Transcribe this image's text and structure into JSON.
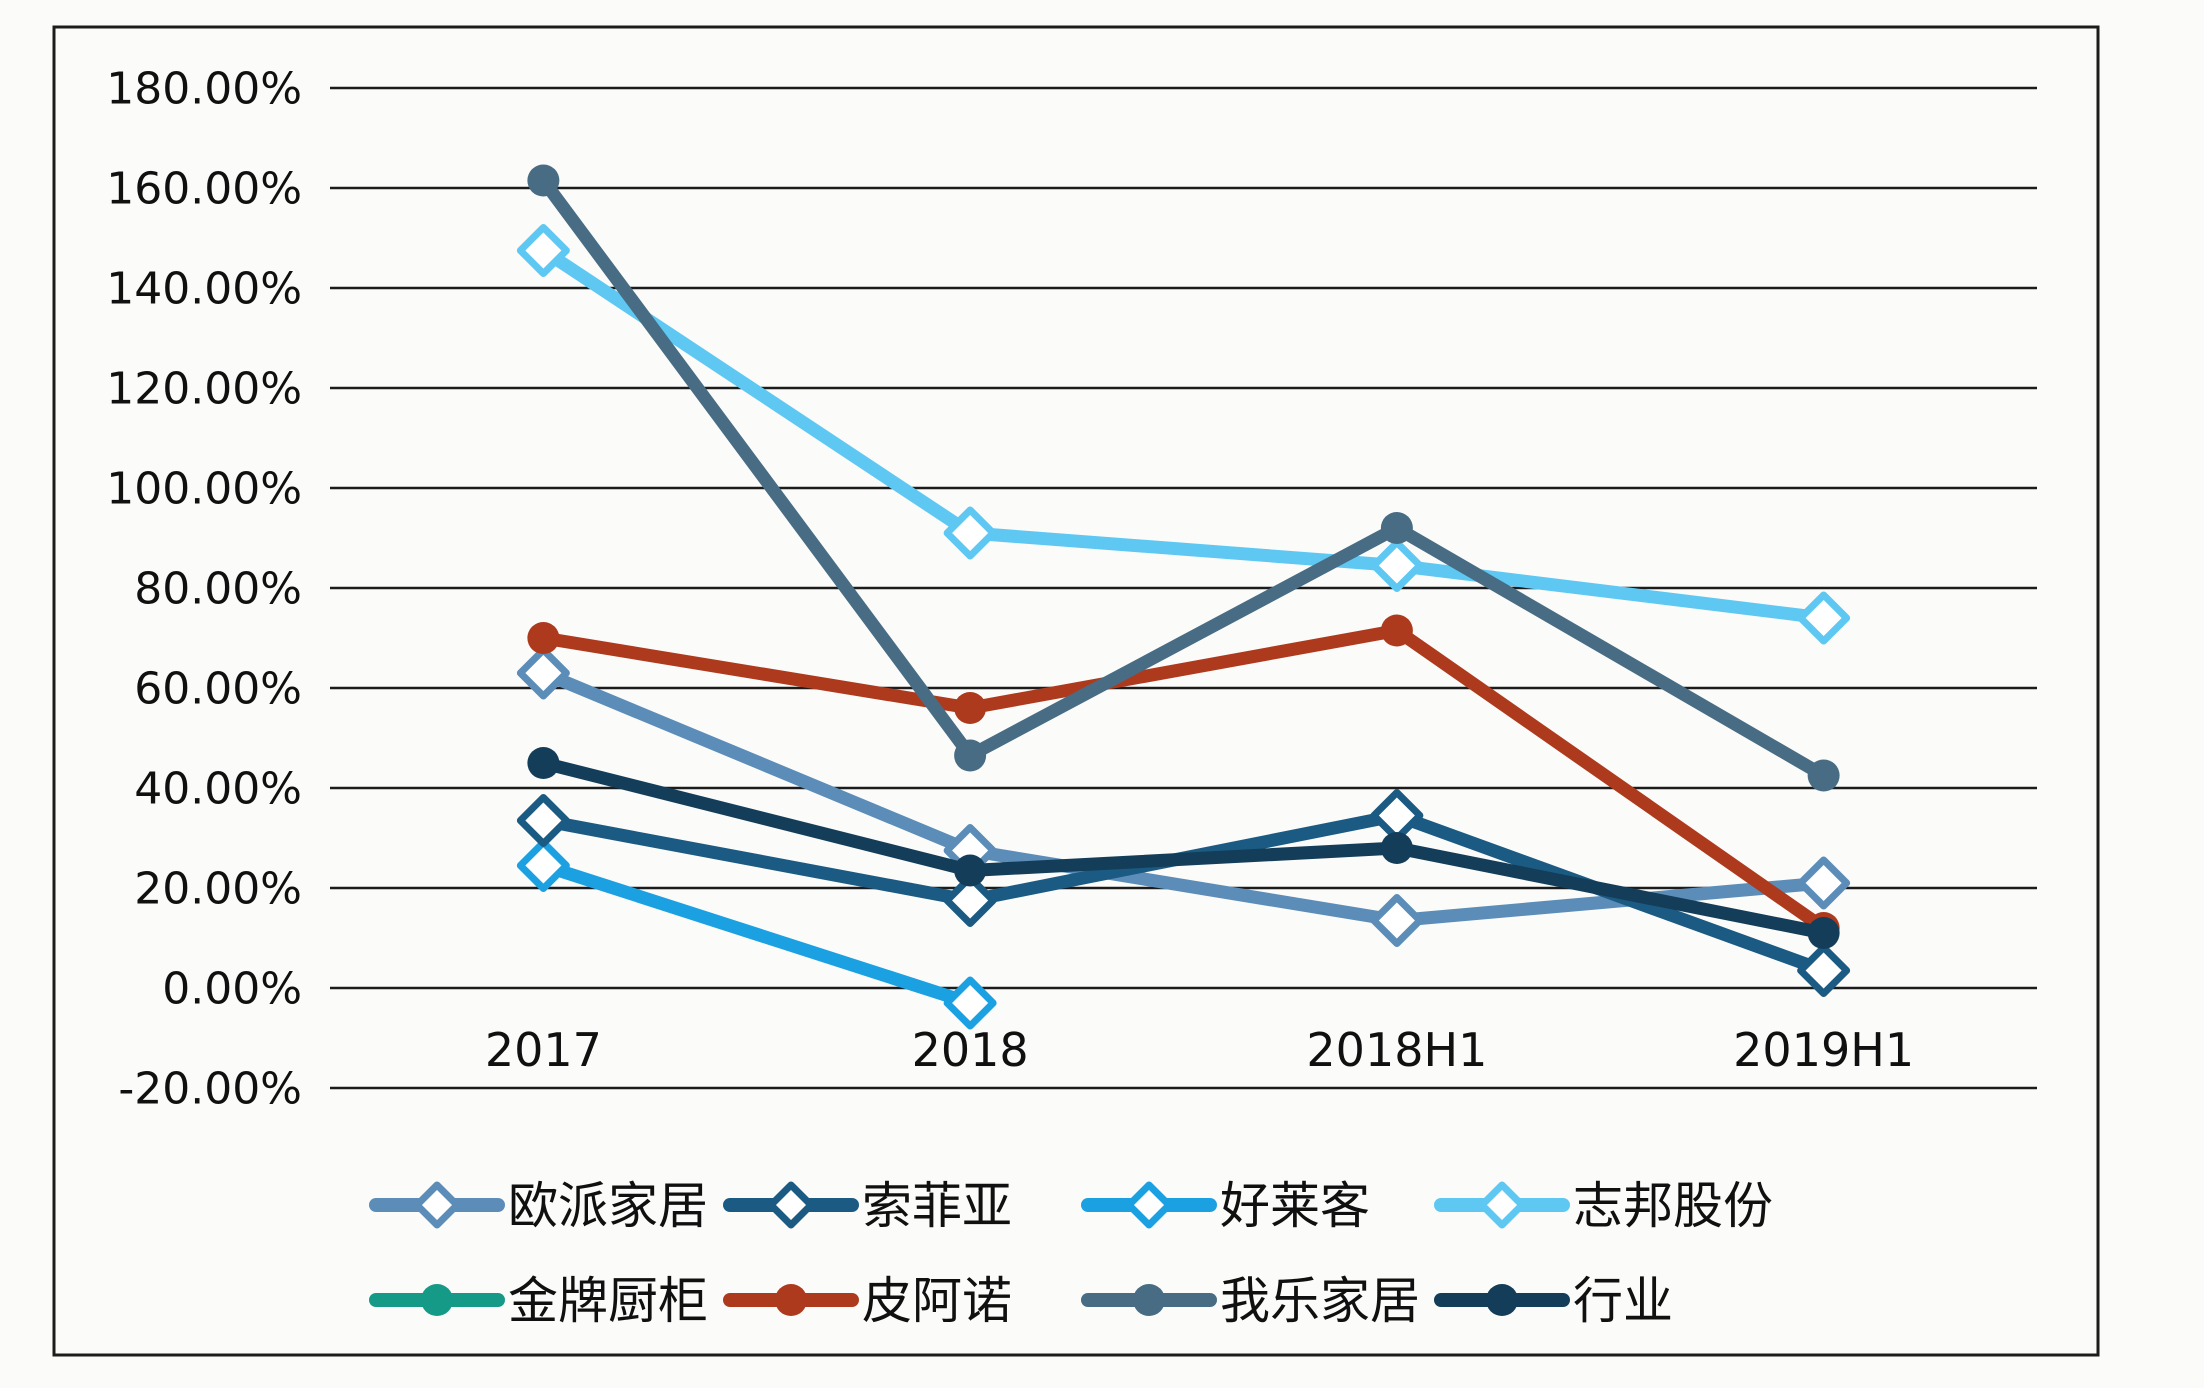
{
  "chart_data": {
    "type": "line",
    "title": "",
    "xlabel": "",
    "ylabel": "",
    "categories": [
      "2017",
      "2018",
      "2018H1",
      "2019H1"
    ],
    "y_axis": {
      "range": [
        -20,
        180
      ],
      "grid": true,
      "ticks": [
        {
          "value": 180,
          "label": "180.00%"
        },
        {
          "value": 160,
          "label": "160.00%"
        },
        {
          "value": 140,
          "label": "140.00%"
        },
        {
          "value": 120,
          "label": "120.00%"
        },
        {
          "value": 100,
          "label": "100.00%"
        },
        {
          "value": 80,
          "label": "80.00%"
        },
        {
          "value": 60,
          "label": "60.00%"
        },
        {
          "value": 40,
          "label": "40.00%"
        },
        {
          "value": 20,
          "label": "20.00%"
        },
        {
          "value": 0,
          "label": "0.00%"
        },
        {
          "value": -20,
          "label": "-20.00%"
        }
      ]
    },
    "series": [
      {
        "id": "oppein",
        "name": "欧派家居",
        "color": "#5b8db8",
        "marker": "open-diamond",
        "values": [
          63,
          27.5,
          13.5,
          21
        ]
      },
      {
        "id": "sofia",
        "name": "索菲亚",
        "color": "#1b5a82",
        "marker": "open-diamond",
        "values": [
          33.5,
          17.5,
          34.5,
          3.5
        ]
      },
      {
        "id": "holike",
        "name": "好莱客",
        "color": "#1ba1e2",
        "marker": "open-diamond",
        "values": [
          24.5,
          -3,
          null,
          null
        ]
      },
      {
        "id": "zbom",
        "name": "志邦股份",
        "color": "#5ec8f2",
        "marker": "open-diamond",
        "values": [
          147.5,
          91,
          84.5,
          74
        ]
      },
      {
        "id": "goldenhome",
        "name": "金牌厨柜",
        "color": "#169a88",
        "marker": "circle",
        "values": [
          null,
          null,
          null,
          null
        ]
      },
      {
        "id": "piano",
        "name": "皮阿诺",
        "color": "#ae3a1e",
        "marker": "circle",
        "values": [
          70,
          56,
          71.5,
          12
        ]
      },
      {
        "id": "olo",
        "name": "我乐家居",
        "color": "#476c84",
        "marker": "circle",
        "values": [
          161.5,
          46.5,
          92,
          42.5
        ]
      },
      {
        "id": "industry",
        "name": "行业",
        "color": "#133d59",
        "marker": "circle",
        "values": [
          45,
          23.5,
          28,
          11
        ]
      }
    ],
    "legend": {
      "position": "bottom",
      "rows": [
        [
          "oppein",
          "sofia",
          "holike",
          "zbom"
        ],
        [
          "goldenhome",
          "piano",
          "olo",
          "industry"
        ]
      ]
    }
  }
}
